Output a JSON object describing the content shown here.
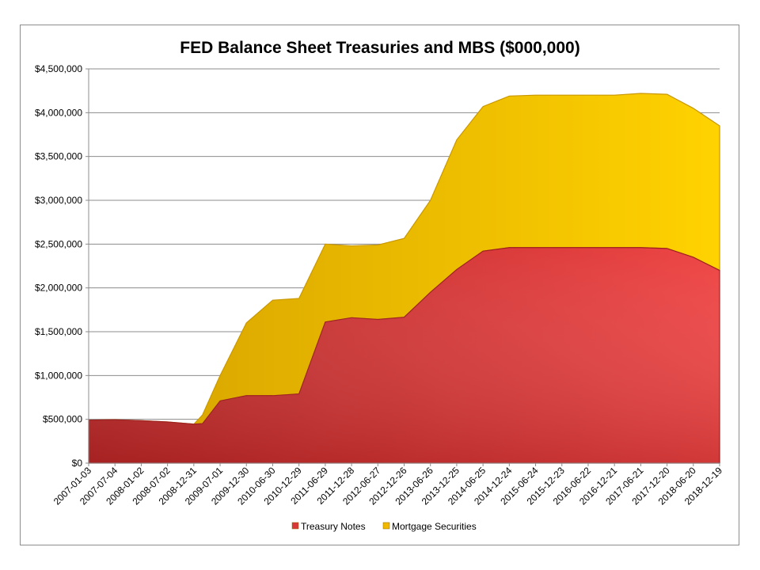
{
  "chart_data": {
    "type": "area",
    "stacked": true,
    "title": "FED Balance Sheet Treasuries and MBS ($000,000)",
    "ylim": [
      0,
      4500000
    ],
    "y_ticks": [
      "$0",
      "$500,000",
      "$1,000,000",
      "$1,500,000",
      "$2,000,000",
      "$2,500,000",
      "$3,000,000",
      "$3,500,000",
      "$4,000,000",
      "$4,500,000"
    ],
    "y_tick_values": [
      0,
      500000,
      1000000,
      1500000,
      2000000,
      2500000,
      3000000,
      3500000,
      4000000,
      4500000
    ],
    "x_ticks": [
      "2007-01-03",
      "2007-07-04",
      "2008-01-02",
      "2008-07-02",
      "2008-12-31",
      "2009-07-01",
      "2009-12-30",
      "2010-06-30",
      "2010-12-29",
      "2011-06-29",
      "2011-12-28",
      "2012-06-27",
      "2012-12-26",
      "2013-06-26",
      "2013-12-25",
      "2014-06-25",
      "2014-12-24",
      "2015-06-24",
      "2015-12-23",
      "2016-06-22",
      "2016-12-21",
      "2017-06-21",
      "2017-12-20",
      "2018-06-20",
      "2018-12-19"
    ],
    "x": [
      "2007-01-03",
      "2007-07-04",
      "2008-01-02",
      "2008-07-02",
      "2008-12-31",
      "2009-03-01",
      "2009-07-01",
      "2009-12-30",
      "2010-06-30",
      "2010-12-29",
      "2011-06-29",
      "2011-12-28",
      "2012-06-27",
      "2012-12-26",
      "2013-06-26",
      "2013-12-25",
      "2014-06-25",
      "2014-12-24",
      "2015-06-24",
      "2015-12-23",
      "2016-06-22",
      "2016-12-21",
      "2017-06-21",
      "2017-12-20",
      "2018-06-20",
      "2018-12-19"
    ],
    "series": [
      {
        "name": "Treasury Notes",
        "color": "#d93838",
        "values": [
          490000,
          495000,
          485000,
          470000,
          445000,
          450000,
          710000,
          770000,
          770000,
          790000,
          1610000,
          1660000,
          1640000,
          1665000,
          1950000,
          2210000,
          2420000,
          2460000,
          2460000,
          2460000,
          2460000,
          2460000,
          2460000,
          2450000,
          2350000,
          2200000
        ]
      },
      {
        "name": "Mortgage Securities",
        "color": "#f2b800",
        "values": [
          0,
          0,
          0,
          0,
          0,
          100000,
          290000,
          830000,
          1090000,
          1090000,
          890000,
          820000,
          850000,
          900000,
          1050000,
          1480000,
          1650000,
          1730000,
          1740000,
          1740000,
          1740000,
          1740000,
          1760000,
          1760000,
          1700000,
          1650000
        ]
      }
    ],
    "legend": {
      "position": "bottom",
      "items": [
        "Treasury Notes",
        "Mortgage Securities"
      ]
    },
    "grid": "horizontal"
  }
}
